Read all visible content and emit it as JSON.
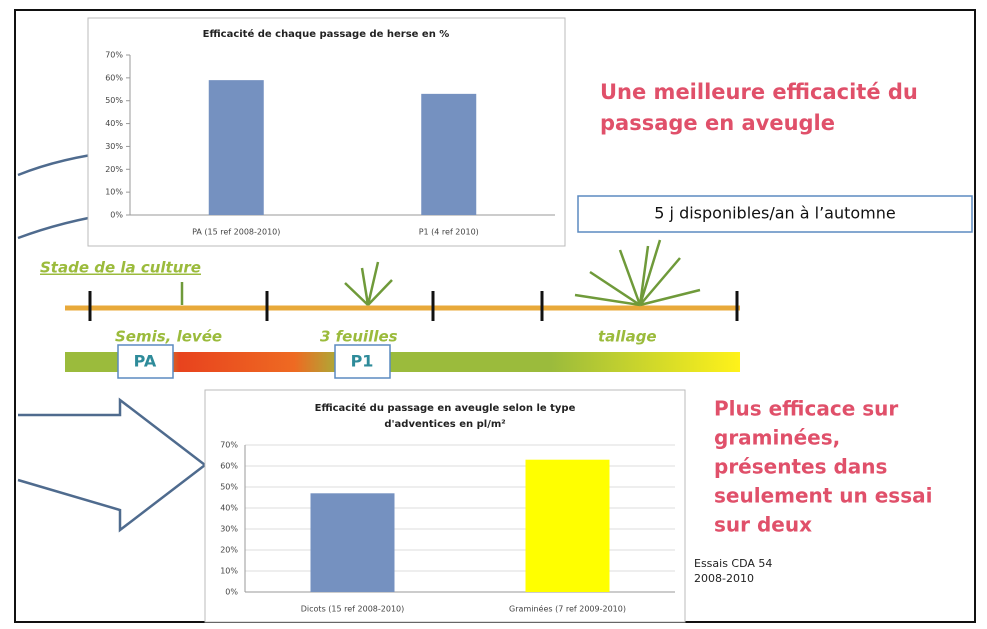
{
  "chart_data": [
    {
      "type": "bar",
      "title": [
        "Efficacité de chaque passage de herse en %"
      ],
      "categories": [
        "PA (15 ref 2008-2010)",
        "P1 (4 ref 2010)"
      ],
      "values": [
        59,
        53
      ],
      "colors": [
        "#7591c0",
        "#7591c0"
      ],
      "ylim": [
        0,
        70
      ],
      "yticks": [
        {
          "value": 0,
          "label": "0%"
        },
        {
          "value": 10,
          "label": "10%"
        },
        {
          "value": 20,
          "label": "20%"
        },
        {
          "value": 30,
          "label": "30%"
        },
        {
          "value": 40,
          "label": "40%"
        },
        {
          "value": 50,
          "label": "50%"
        },
        {
          "value": 60,
          "label": "60%"
        },
        {
          "value": 70,
          "label": "70%"
        }
      ],
      "grid": false
    },
    {
      "type": "bar",
      "title": [
        "Efficacité du passage en aveugle selon le type",
        "d'adventices en pl/m²"
      ],
      "categories": [
        "Dicots (15 ref 2008-2010)",
        "Graminées  (7 ref 2009-2010)"
      ],
      "values": [
        47,
        63
      ],
      "colors": [
        "#7591c0",
        "#ffff00"
      ],
      "ylim": [
        0,
        70
      ],
      "yticks": [
        {
          "value": 0,
          "label": "0%"
        },
        {
          "value": 10,
          "label": "10%"
        },
        {
          "value": 20,
          "label": "20%"
        },
        {
          "value": 30,
          "label": "30%"
        },
        {
          "value": 40,
          "label": "40%"
        },
        {
          "value": 50,
          "label": "50%"
        },
        {
          "value": 60,
          "label": "60%"
        },
        {
          "value": 70,
          "label": "70%"
        }
      ],
      "grid": true
    }
  ],
  "slide": {
    "headline": [
      "Une meilleure efficacité du",
      "passage en aveugle"
    ],
    "availability": "5 j  disponibles/an à l’automne",
    "stage_title": "Stade de la culture",
    "stages": [
      "Semis, levée",
      "3 feuilles",
      "tallage"
    ],
    "passes": [
      "PA",
      "P1"
    ],
    "conclusion": [
      "Plus efficace sur",
      "graminées,",
      "présentes dans",
      "seulement un essai",
      "sur deux"
    ],
    "source": [
      "Essais CDA 54",
      "2008-2010"
    ]
  }
}
